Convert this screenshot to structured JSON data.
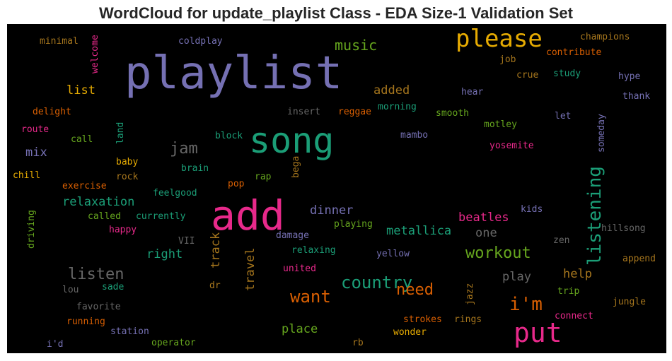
{
  "title": "WordCloud for update_playlist Class - EDA Size-1 Validation Set",
  "colors": {
    "background": "#000000",
    "title": "#262626"
  },
  "words": [
    {
      "id": "playlist",
      "text": "playlist",
      "color": "#7570b3"
    },
    {
      "id": "please",
      "text": "please",
      "color": "#e6ab02"
    },
    {
      "id": "song",
      "text": "song",
      "color": "#1b9e77"
    },
    {
      "id": "add",
      "text": "add",
      "color": "#e7298a"
    },
    {
      "id": "put",
      "text": "put",
      "color": "#e7298a"
    },
    {
      "id": "listening",
      "text": "listening",
      "color": "#1b9e77"
    },
    {
      "id": "music",
      "text": "music",
      "color": "#66a61e"
    },
    {
      "id": "im",
      "text": "i'm",
      "color": "#d95f02"
    },
    {
      "id": "country",
      "text": "country",
      "color": "#1b9e77"
    },
    {
      "id": "want",
      "text": "want",
      "color": "#d95f02"
    },
    {
      "id": "workout",
      "text": "workout",
      "color": "#66a61e"
    },
    {
      "id": "listen",
      "text": "listen",
      "color": "#666666"
    },
    {
      "id": "need",
      "text": "need",
      "color": "#d95f02"
    },
    {
      "id": "jam",
      "text": "jam",
      "color": "#666666"
    },
    {
      "id": "metallica",
      "text": "metallica",
      "color": "#1b9e77"
    },
    {
      "id": "list",
      "text": "list",
      "color": "#e6ab02"
    },
    {
      "id": "added",
      "text": "added",
      "color": "#a6761d"
    },
    {
      "id": "relaxation",
      "text": "relaxation",
      "color": "#1b9e77"
    },
    {
      "id": "beatles",
      "text": "beatles",
      "color": "#e7298a"
    },
    {
      "id": "dinner",
      "text": "dinner",
      "color": "#7570b3"
    },
    {
      "id": "right",
      "text": "right",
      "color": "#1b9e77"
    },
    {
      "id": "place",
      "text": "place",
      "color": "#66a61e"
    },
    {
      "id": "help",
      "text": "help",
      "color": "#a6761d"
    },
    {
      "id": "play",
      "text": "play",
      "color": "#666666"
    },
    {
      "id": "one",
      "text": "one",
      "color": "#666666"
    },
    {
      "id": "mix",
      "text": "mix",
      "color": "#7570b3"
    },
    {
      "id": "track",
      "text": "track",
      "color": "#a6761d"
    },
    {
      "id": "travel",
      "text": "travel",
      "color": "#a6761d"
    },
    {
      "id": "champions",
      "text": "champions",
      "color": "#a6761d"
    },
    {
      "id": "contribute",
      "text": "contribute",
      "color": "#d95f02"
    },
    {
      "id": "job",
      "text": "job",
      "color": "#a6761d"
    },
    {
      "id": "crue",
      "text": "crue",
      "color": "#a6761d"
    },
    {
      "id": "study",
      "text": "study",
      "color": "#1b9e77"
    },
    {
      "id": "hype",
      "text": "hype",
      "color": "#7570b3"
    },
    {
      "id": "hear",
      "text": "hear",
      "color": "#7570b3"
    },
    {
      "id": "thank",
      "text": "thank",
      "color": "#7570b3"
    },
    {
      "id": "minimal",
      "text": "minimal",
      "color": "#a6761d"
    },
    {
      "id": "welcome",
      "text": "welcome",
      "color": "#e7298a"
    },
    {
      "id": "coldplay",
      "text": "coldplay",
      "color": "#7570b3"
    },
    {
      "id": "delight",
      "text": "delight",
      "color": "#d95f02"
    },
    {
      "id": "route",
      "text": "route",
      "color": "#e7298a"
    },
    {
      "id": "call",
      "text": "call",
      "color": "#66a61e"
    },
    {
      "id": "land",
      "text": "land",
      "color": "#1b9e77"
    },
    {
      "id": "insert",
      "text": "insert",
      "color": "#666666"
    },
    {
      "id": "reggae",
      "text": "reggae",
      "color": "#d95f02"
    },
    {
      "id": "morning",
      "text": "morning",
      "color": "#1b9e77"
    },
    {
      "id": "smooth",
      "text": "smooth",
      "color": "#66a61e"
    },
    {
      "id": "someday",
      "text": "someday",
      "color": "#7570b3"
    },
    {
      "id": "let",
      "text": "let",
      "color": "#7570b3"
    },
    {
      "id": "motley",
      "text": "motley",
      "color": "#66a61e"
    },
    {
      "id": "mambo",
      "text": "mambo",
      "color": "#7570b3"
    },
    {
      "id": "yosemite",
      "text": "yosemite",
      "color": "#e7298a"
    },
    {
      "id": "block",
      "text": "block",
      "color": "#1b9e77"
    },
    {
      "id": "baby",
      "text": "baby",
      "color": "#e6ab02"
    },
    {
      "id": "chill",
      "text": "chill",
      "color": "#e6ab02"
    },
    {
      "id": "rock",
      "text": "rock",
      "color": "#a6761d"
    },
    {
      "id": "brain",
      "text": "brain",
      "color": "#1b9e77"
    },
    {
      "id": "rap",
      "text": "rap",
      "color": "#66a61e"
    },
    {
      "id": "bega",
      "text": "bega",
      "color": "#a6761d"
    },
    {
      "id": "exercise",
      "text": "exercise",
      "color": "#d95f02"
    },
    {
      "id": "pop",
      "text": "pop",
      "color": "#d95f02"
    },
    {
      "id": "feelgood",
      "text": "feelgood",
      "color": "#1b9e77"
    },
    {
      "id": "called",
      "text": "called",
      "color": "#66a61e"
    },
    {
      "id": "currently",
      "text": "currently",
      "color": "#1b9e77"
    },
    {
      "id": "kids",
      "text": "kids",
      "color": "#7570b3"
    },
    {
      "id": "driving",
      "text": "driving",
      "color": "#66a61e"
    },
    {
      "id": "happy",
      "text": "happy",
      "color": "#e7298a"
    },
    {
      "id": "VII",
      "text": "VII",
      "color": "#666666"
    },
    {
      "id": "damage",
      "text": "damage",
      "color": "#7570b3"
    },
    {
      "id": "playing",
      "text": "playing",
      "color": "#66a61e"
    },
    {
      "id": "zen",
      "text": "zen",
      "color": "#666666"
    },
    {
      "id": "hillsong",
      "text": "hillsong",
      "color": "#666666"
    },
    {
      "id": "relaxing",
      "text": "relaxing",
      "color": "#1b9e77"
    },
    {
      "id": "yellow",
      "text": "yellow",
      "color": "#7570b3"
    },
    {
      "id": "united",
      "text": "united",
      "color": "#e7298a"
    },
    {
      "id": "append",
      "text": "append",
      "color": "#a6761d"
    },
    {
      "id": "lou",
      "text": "lou",
      "color": "#666666"
    },
    {
      "id": "sade",
      "text": "sade",
      "color": "#1b9e77"
    },
    {
      "id": "dr",
      "text": "dr",
      "color": "#a6761d"
    },
    {
      "id": "jazz",
      "text": "jazz",
      "color": "#a6761d"
    },
    {
      "id": "trip",
      "text": "trip",
      "color": "#66a61e"
    },
    {
      "id": "favorite",
      "text": "favorite",
      "color": "#666666"
    },
    {
      "id": "jungle",
      "text": "jungle",
      "color": "#a6761d"
    },
    {
      "id": "connect",
      "text": "connect",
      "color": "#e7298a"
    },
    {
      "id": "running",
      "text": "running",
      "color": "#d95f02"
    },
    {
      "id": "strokes",
      "text": "strokes",
      "color": "#d95f02"
    },
    {
      "id": "rings",
      "text": "rings",
      "color": "#a6761d"
    },
    {
      "id": "station",
      "text": "station",
      "color": "#7570b3"
    },
    {
      "id": "wonder",
      "text": "wonder",
      "color": "#e6ab02"
    },
    {
      "id": "id",
      "text": "i'd",
      "color": "#7570b3"
    },
    {
      "id": "operator",
      "text": "operator",
      "color": "#66a61e"
    },
    {
      "id": "rb",
      "text": "rb",
      "color": "#a6761d"
    }
  ]
}
